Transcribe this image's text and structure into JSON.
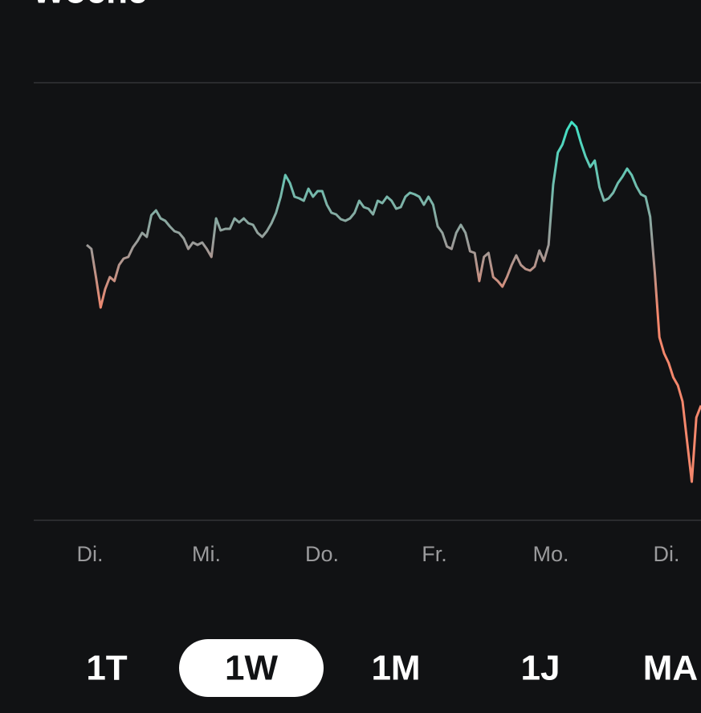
{
  "header": {
    "title": "Woche"
  },
  "chart_data": {
    "type": "line",
    "x_labels": [
      "Di.",
      "Mi.",
      "Do.",
      "Fr.",
      "Mo.",
      "Di."
    ],
    "gradient_colors": [
      "#3fe3c6",
      "#9c9a98",
      "#f4876c"
    ],
    "values": [
      395,
      390,
      355,
      317,
      340,
      355,
      350,
      370,
      378,
      380,
      392,
      400,
      410,
      405,
      432,
      438,
      428,
      425,
      418,
      412,
      410,
      403,
      390,
      398,
      395,
      398,
      390,
      380,
      428,
      413,
      415,
      415,
      428,
      423,
      428,
      422,
      420,
      410,
      405,
      412,
      422,
      435,
      455,
      482,
      472,
      455,
      453,
      450,
      465,
      455,
      462,
      462,
      445,
      435,
      433,
      427,
      425,
      428,
      435,
      450,
      442,
      440,
      433,
      450,
      447,
      455,
      450,
      440,
      442,
      455,
      460,
      458,
      455,
      445,
      455,
      445,
      418,
      410,
      393,
      390,
      410,
      420,
      410,
      387,
      385,
      350,
      380,
      385,
      355,
      350,
      343,
      355,
      370,
      382,
      370,
      365,
      363,
      368,
      388,
      375,
      395,
      470,
      510,
      520,
      538,
      548,
      542,
      522,
      505,
      492,
      500,
      467,
      450,
      453,
      460,
      472,
      480,
      490,
      482,
      468,
      458,
      455,
      430,
      360,
      280,
      260,
      248,
      230,
      220,
      200,
      150,
      100,
      180,
      195
    ]
  },
  "ranges": [
    "1T",
    "1W",
    "1M",
    "1J",
    "MA"
  ]
}
